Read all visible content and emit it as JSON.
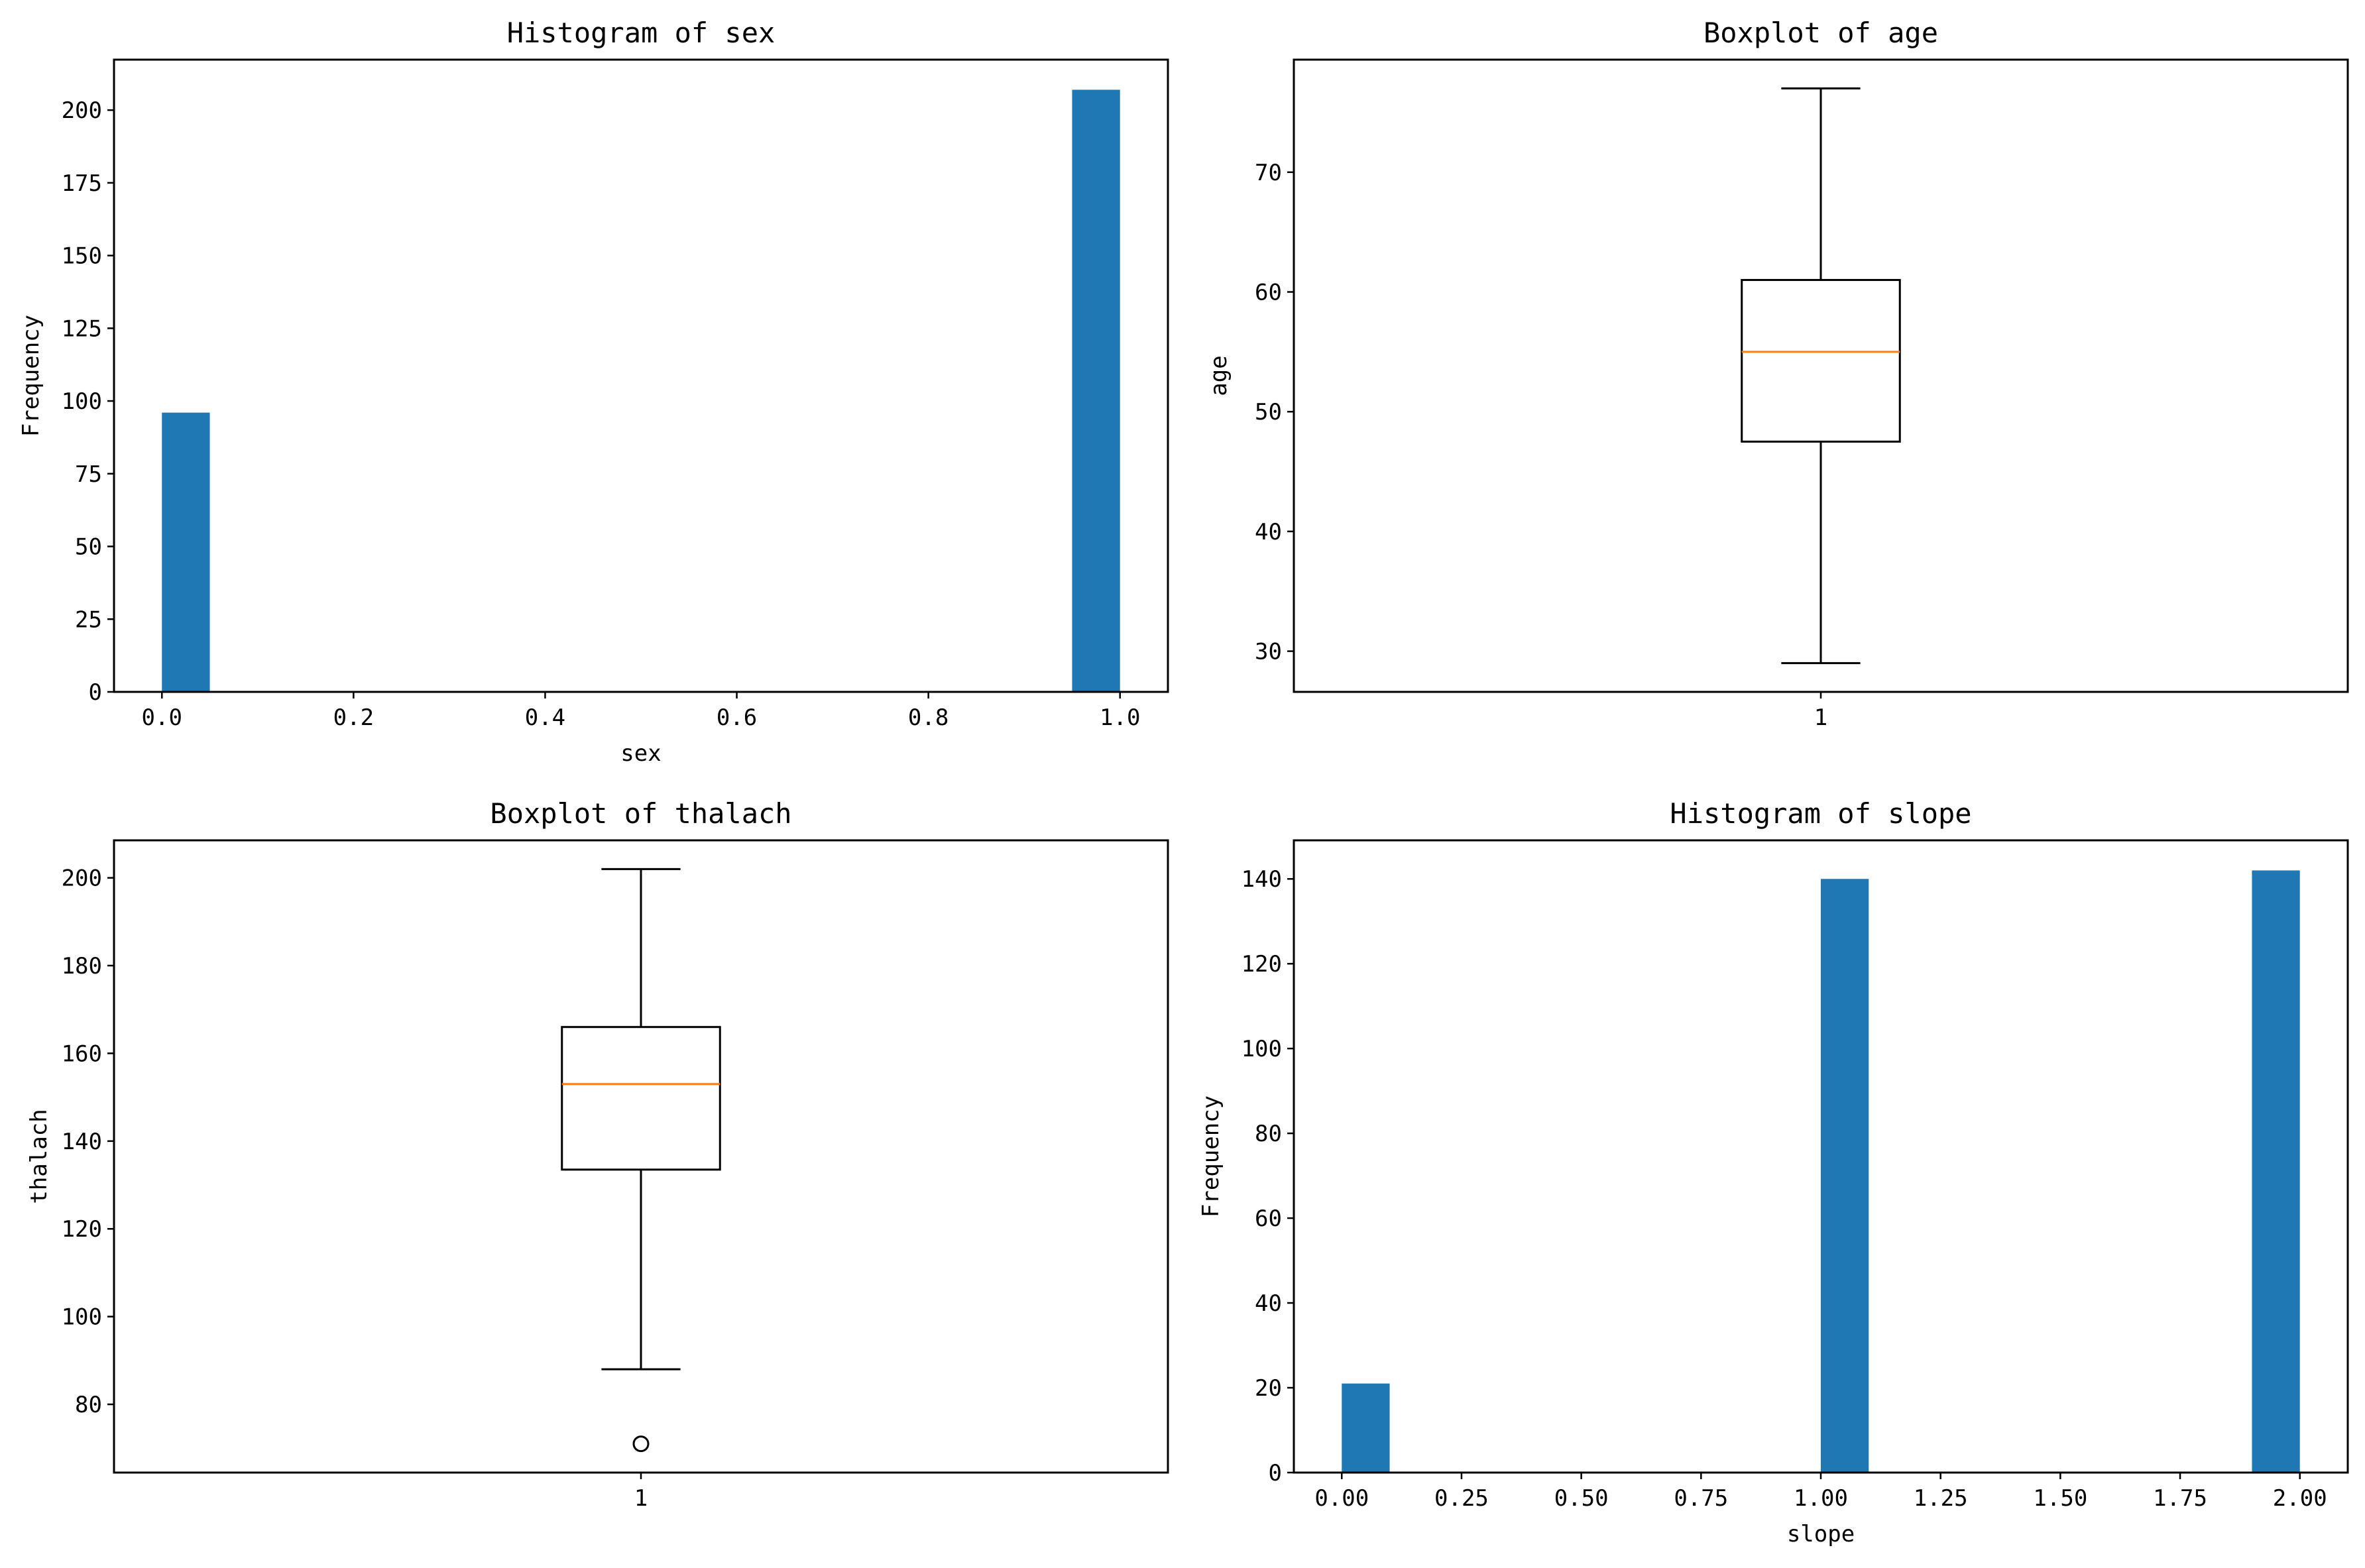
{
  "figure": {
    "background": "#ffffff"
  },
  "colors": {
    "bar": "#1f77b4",
    "box": "#000000",
    "median": "#ff7f0e",
    "frame": "#000000"
  },
  "chart_data": [
    {
      "id": "sex-hist",
      "type": "bar",
      "subtype": "histogram",
      "title": "Histogram of sex",
      "xlabel": "sex",
      "ylabel": "Frequency",
      "xlim": [
        -0.05,
        1.05
      ],
      "ylim": [
        0,
        217.35
      ],
      "xticks": [
        0.0,
        0.2,
        0.4,
        0.6,
        0.8,
        1.0
      ],
      "xtick_labels": [
        "0.0",
        "0.2",
        "0.4",
        "0.6",
        "0.8",
        "1.0"
      ],
      "yticks": [
        0,
        25,
        50,
        75,
        100,
        125,
        150,
        175,
        200
      ],
      "ytick_labels": [
        "0",
        "25",
        "50",
        "75",
        "100",
        "125",
        "150",
        "175",
        "200"
      ],
      "bins": 20,
      "bin_start": 0,
      "bin_width": 0.05,
      "values": [
        96,
        0,
        0,
        0,
        0,
        0,
        0,
        0,
        0,
        0,
        0,
        0,
        0,
        0,
        0,
        0,
        0,
        0,
        0,
        207
      ]
    },
    {
      "id": "age-box",
      "type": "boxplot",
      "title": "Boxplot of age",
      "xlabel": "",
      "ylabel": "age",
      "ylim": [
        26.6,
        79.4
      ],
      "yticks": [
        30,
        40,
        50,
        60,
        70
      ],
      "ytick_labels": [
        "30",
        "40",
        "50",
        "60",
        "70"
      ],
      "categories": [
        "1"
      ],
      "boxes": [
        {
          "whisker_low": 29,
          "q1": 47.5,
          "median": 55,
          "q3": 61,
          "whisker_high": 77,
          "outliers": []
        }
      ]
    },
    {
      "id": "thalach-box",
      "type": "boxplot",
      "title": "Boxplot of thalach",
      "xlabel": "",
      "ylabel": "thalach",
      "ylim": [
        64.45,
        208.55
      ],
      "yticks": [
        80,
        100,
        120,
        140,
        160,
        180,
        200
      ],
      "ytick_labels": [
        "80",
        "100",
        "120",
        "140",
        "160",
        "180",
        "200"
      ],
      "categories": [
        "1"
      ],
      "boxes": [
        {
          "whisker_low": 88,
          "q1": 133.5,
          "median": 153,
          "q3": 166,
          "whisker_high": 202,
          "outliers": [
            71
          ]
        }
      ]
    },
    {
      "id": "slope-hist",
      "type": "bar",
      "subtype": "histogram",
      "title": "Histogram of slope",
      "xlabel": "slope",
      "ylabel": "Frequency",
      "xlim": [
        -0.1,
        2.1
      ],
      "ylim": [
        0,
        149.1
      ],
      "xticks": [
        0.0,
        0.25,
        0.5,
        0.75,
        1.0,
        1.25,
        1.5,
        1.75,
        2.0
      ],
      "xtick_labels": [
        "0.00",
        "0.25",
        "0.50",
        "0.75",
        "1.00",
        "1.25",
        "1.50",
        "1.75",
        "2.00"
      ],
      "yticks": [
        0,
        20,
        40,
        60,
        80,
        100,
        120,
        140
      ],
      "ytick_labels": [
        "0",
        "20",
        "40",
        "60",
        "80",
        "100",
        "120",
        "140"
      ],
      "bins": 20,
      "bin_start": 0,
      "bin_width": 0.1,
      "values": [
        21,
        0,
        0,
        0,
        0,
        0,
        0,
        0,
        0,
        0,
        140,
        0,
        0,
        0,
        0,
        0,
        0,
        0,
        0,
        142
      ]
    }
  ]
}
